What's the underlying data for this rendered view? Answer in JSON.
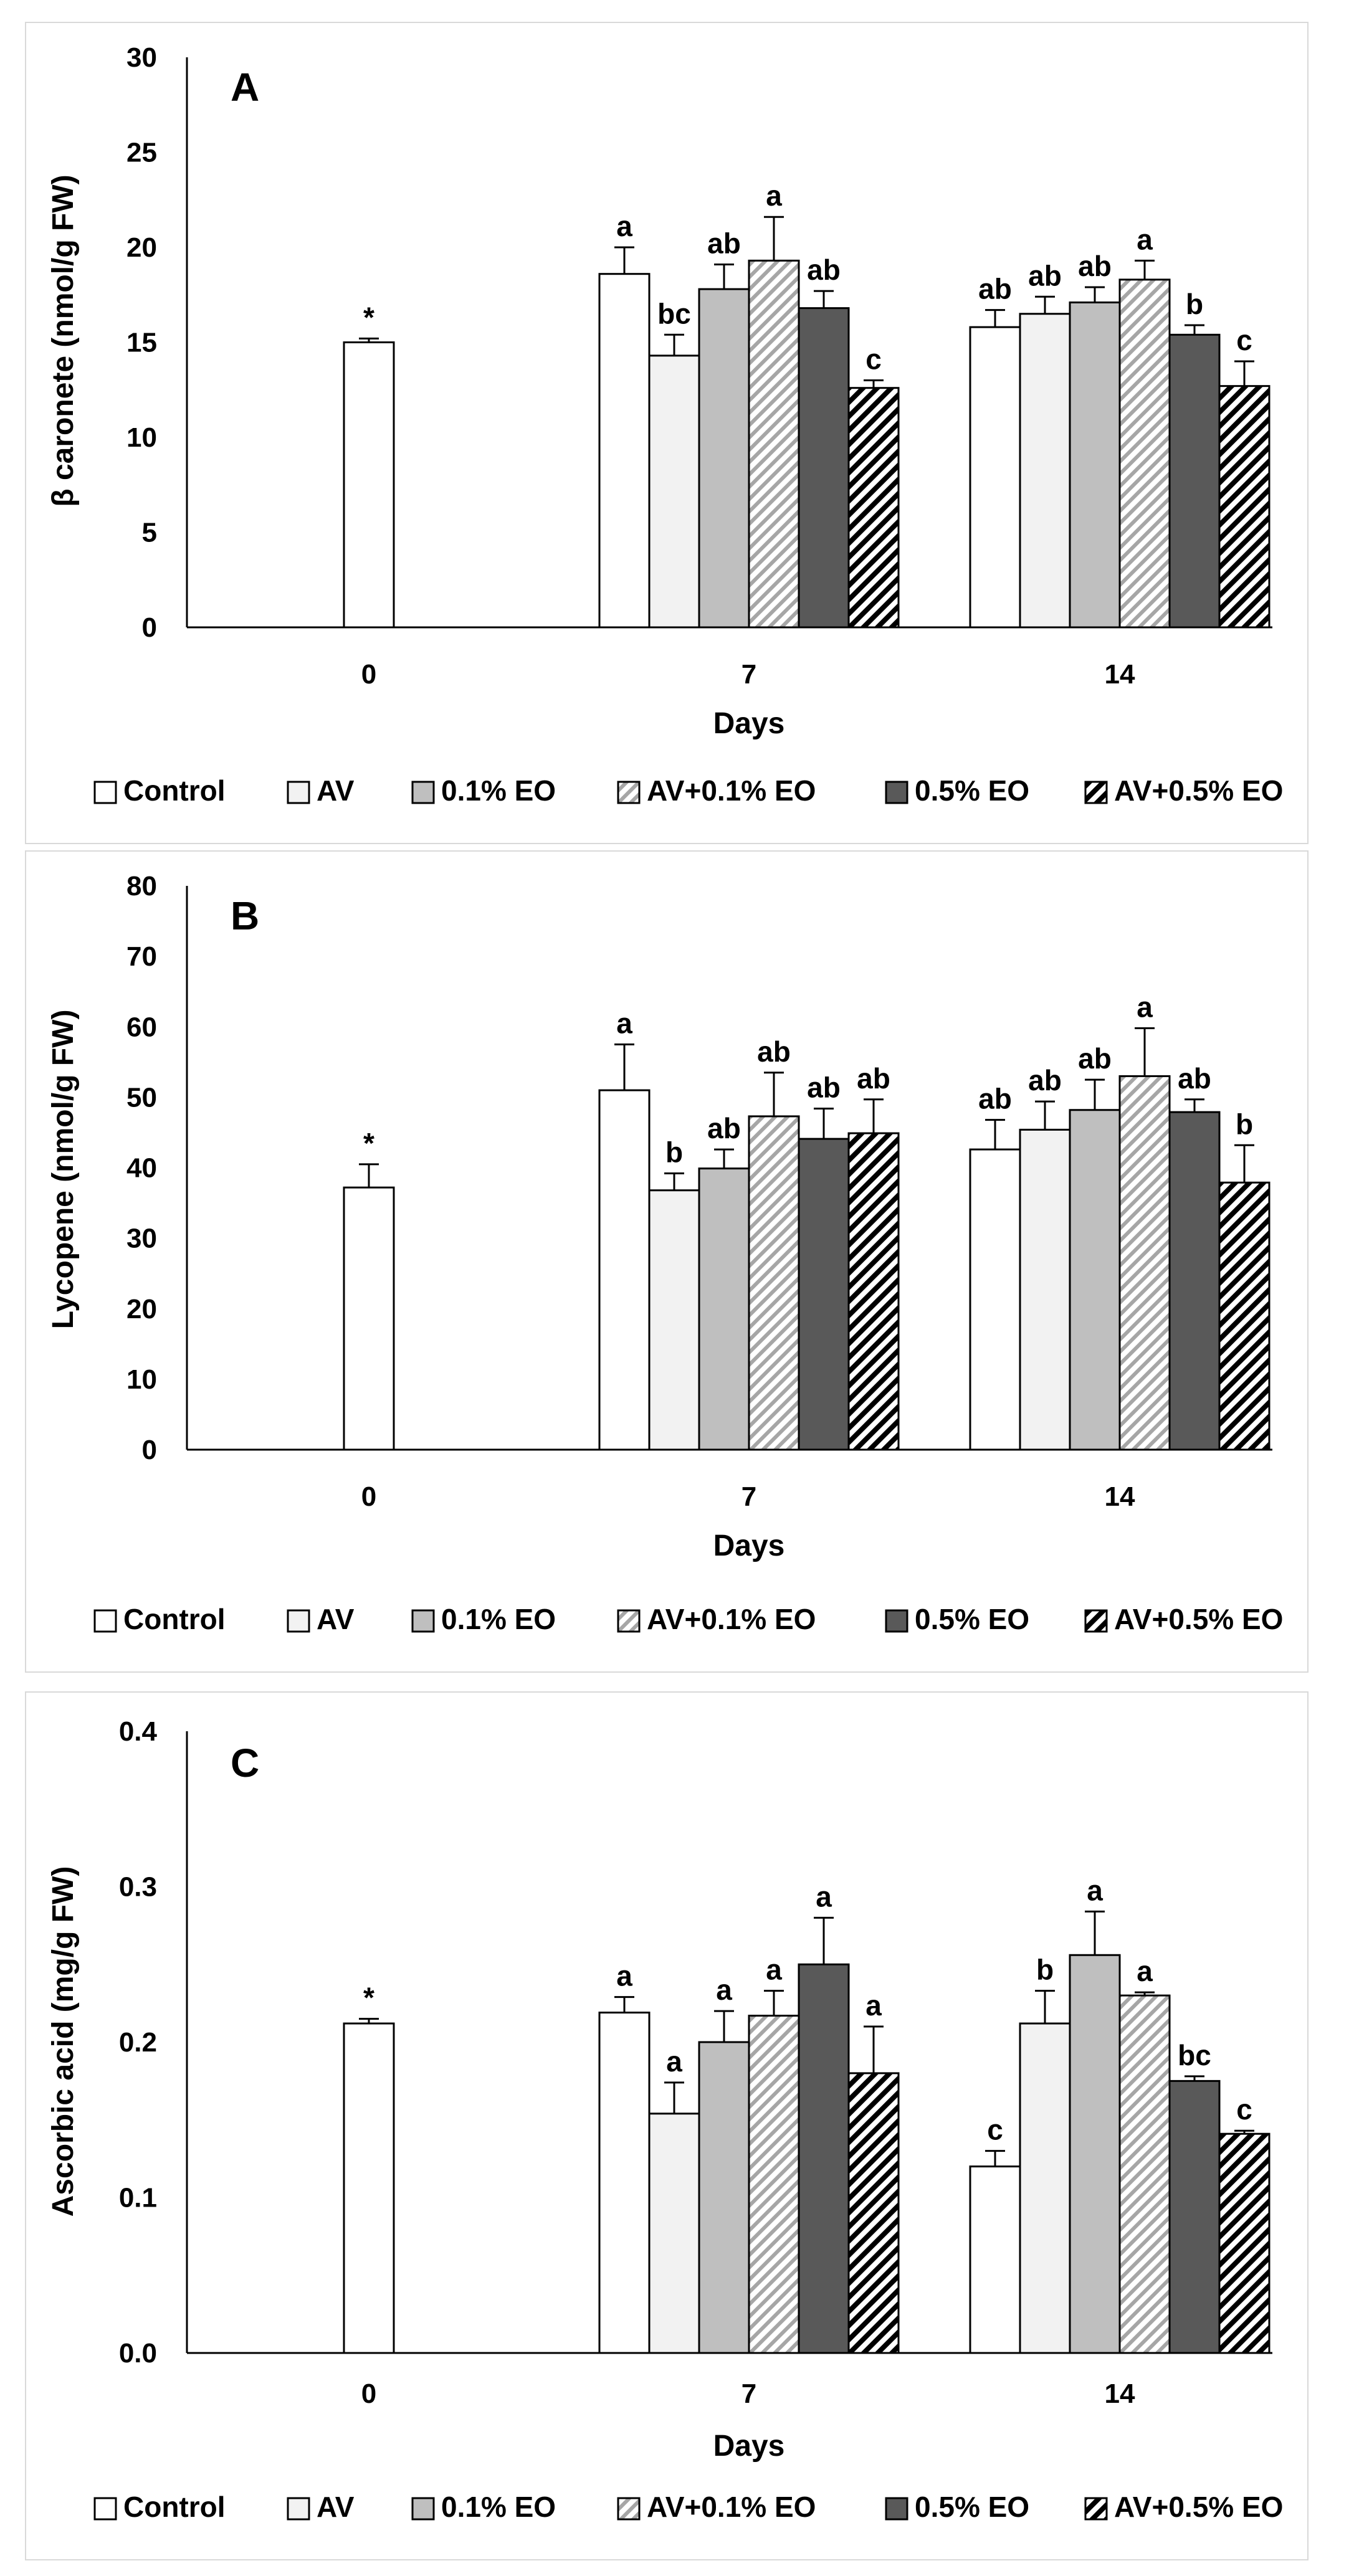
{
  "chart_data": [
    {
      "type": "bar",
      "panel_label": "A",
      "xlabel": "Days",
      "ylabel": "β caronete (nmol/g FW)",
      "ylim": [
        0,
        30
      ],
      "yticks": [
        "0",
        "5",
        "10",
        "15",
        "20",
        "25",
        "30"
      ],
      "categories": [
        "0",
        "7",
        "14"
      ],
      "series": [
        {
          "name": "Control",
          "values": [
            15.0,
            18.6,
            15.8
          ],
          "errors": [
            0.2,
            1.4,
            0.9
          ],
          "letters": [
            "*",
            "a",
            "ab"
          ]
        },
        {
          "name": "AV",
          "values": [
            null,
            14.3,
            16.5
          ],
          "errors": [
            null,
            1.1,
            0.9
          ],
          "letters": [
            null,
            "bc",
            "ab"
          ]
        },
        {
          "name": "0.1% EO",
          "values": [
            null,
            17.8,
            17.1
          ],
          "errors": [
            null,
            1.3,
            0.8
          ],
          "letters": [
            null,
            "ab",
            "ab"
          ]
        },
        {
          "name": "AV+0.1% EO",
          "values": [
            null,
            19.3,
            18.3
          ],
          "errors": [
            null,
            2.3,
            1.0
          ],
          "letters": [
            null,
            "a",
            "a"
          ]
        },
        {
          "name": "0.5% EO",
          "values": [
            null,
            16.8,
            15.4
          ],
          "errors": [
            null,
            0.9,
            0.5
          ],
          "letters": [
            null,
            "ab",
            "b"
          ]
        },
        {
          "name": "AV+0.5% EO",
          "values": [
            null,
            12.6,
            12.7
          ],
          "errors": [
            null,
            0.4,
            1.3
          ],
          "letters": [
            null,
            "c",
            "c"
          ]
        }
      ]
    },
    {
      "type": "bar",
      "panel_label": "B",
      "xlabel": "Days",
      "ylabel": "Lycopene (nmol/g FW)",
      "ylim": [
        0,
        80
      ],
      "yticks": [
        "0",
        "10",
        "20",
        "30",
        "40",
        "50",
        "60",
        "70",
        "80"
      ],
      "categories": [
        "0",
        "7",
        "14"
      ],
      "series": [
        {
          "name": "Control",
          "values": [
            37.2,
            51.0,
            42.6
          ],
          "errors": [
            3.3,
            6.5,
            4.2
          ],
          "letters": [
            "*",
            "a",
            "ab"
          ]
        },
        {
          "name": "AV",
          "values": [
            null,
            36.8,
            45.4
          ],
          "errors": [
            null,
            2.4,
            4.0
          ],
          "letters": [
            null,
            "b",
            "ab"
          ]
        },
        {
          "name": "0.1% EO",
          "values": [
            null,
            39.9,
            48.2
          ],
          "errors": [
            null,
            2.7,
            4.3
          ],
          "letters": [
            null,
            "ab",
            "ab"
          ]
        },
        {
          "name": "AV+0.1% EO",
          "values": [
            null,
            47.3,
            53.0
          ],
          "errors": [
            null,
            6.2,
            6.8
          ],
          "letters": [
            null,
            "ab",
            "a"
          ]
        },
        {
          "name": "0.5% EO",
          "values": [
            null,
            44.1,
            47.9
          ],
          "errors": [
            null,
            4.3,
            1.8
          ],
          "letters": [
            null,
            "ab",
            "ab"
          ]
        },
        {
          "name": "AV+0.5% EO",
          "values": [
            null,
            44.9,
            37.9
          ],
          "errors": [
            null,
            4.8,
            5.3
          ],
          "letters": [
            null,
            "ab",
            "b"
          ]
        }
      ]
    },
    {
      "type": "bar",
      "panel_label": "C",
      "xlabel": "Days",
      "ylabel": "Ascorbic acid (mg/g FW)",
      "ylim": [
        0,
        0.4
      ],
      "yticks": [
        "0.0",
        "0.1",
        "0.2",
        "0.3",
        "0.4"
      ],
      "categories": [
        "0",
        "7",
        "14"
      ],
      "series": [
        {
          "name": "Control",
          "values": [
            0.212,
            0.219,
            0.12
          ],
          "errors": [
            0.003,
            0.01,
            0.01
          ],
          "letters": [
            "*",
            "a",
            "c"
          ]
        },
        {
          "name": "AV",
          "values": [
            null,
            0.154,
            0.212
          ],
          "errors": [
            null,
            0.02,
            0.021
          ],
          "letters": [
            null,
            "a",
            "b"
          ]
        },
        {
          "name": "0.1% EO",
          "values": [
            null,
            0.2,
            0.256
          ],
          "errors": [
            null,
            0.02,
            0.028
          ],
          "letters": [
            null,
            "a",
            "a"
          ]
        },
        {
          "name": "AV+0.1% EO",
          "values": [
            null,
            0.217,
            0.23
          ],
          "errors": [
            null,
            0.016,
            0.002
          ],
          "letters": [
            null,
            "a",
            "a"
          ]
        },
        {
          "name": "0.5% EO",
          "values": [
            null,
            0.25,
            0.175
          ],
          "errors": [
            null,
            0.03,
            0.003
          ],
          "letters": [
            null,
            "a",
            "bc"
          ]
        },
        {
          "name": "AV+0.5% EO",
          "values": [
            null,
            0.18,
            0.141
          ],
          "errors": [
            null,
            0.03,
            0.002
          ],
          "letters": [
            null,
            "a",
            "c"
          ]
        }
      ]
    }
  ],
  "legend": [
    "Control",
    "AV",
    "0.1% EO",
    "AV+0.1% EO",
    "0.5% EO",
    "AV+0.5% EO"
  ],
  "series_colors": [
    "#ffffff",
    "#f2f2f2",
    "#bfbfbf",
    "hatch-light",
    "#595959",
    "hatch-dark"
  ]
}
